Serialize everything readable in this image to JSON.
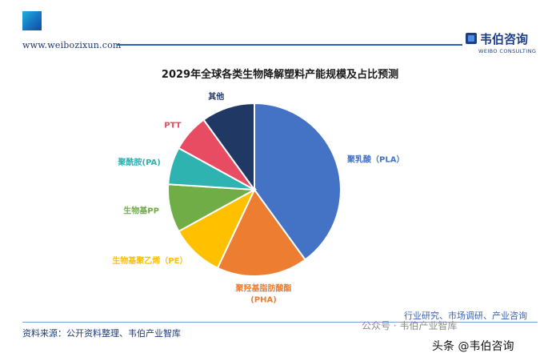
{
  "header": {
    "site_url": "www.weibozixun.com",
    "brand_name": "韦伯咨询",
    "brand_sub": "WEIBO CONSULTING"
  },
  "footer": {
    "source": "资料来源：公开资料整理、韦伯产业智库",
    "tagline": "行业研究、市场调研、产业咨询",
    "watermark": "公众号 · 韦伯产业智库",
    "account": "头条 @韦伯咨询"
  },
  "chart_data": {
    "type": "pie",
    "title": "2029年全球各类生物降解塑料产能规模及占比预测",
    "slices": [
      {
        "label": "聚乳酸（PLA）",
        "value": 40,
        "color": "#4472c4"
      },
      {
        "label": "聚羟基脂肪酸酯(PHA)",
        "value": 17,
        "color": "#ed7d31"
      },
      {
        "label": "生物基聚乙烯（PE）",
        "value": 10,
        "color": "#ffc000"
      },
      {
        "label": "生物基PP",
        "value": 9,
        "color": "#70ad47"
      },
      {
        "label": "聚酰胺(PA)",
        "value": 7,
        "color": "#2eb3b0"
      },
      {
        "label": "PTT",
        "value": 7,
        "color": "#e84c63"
      },
      {
        "label": "其他",
        "value": 10,
        "color": "#203864"
      }
    ]
  }
}
